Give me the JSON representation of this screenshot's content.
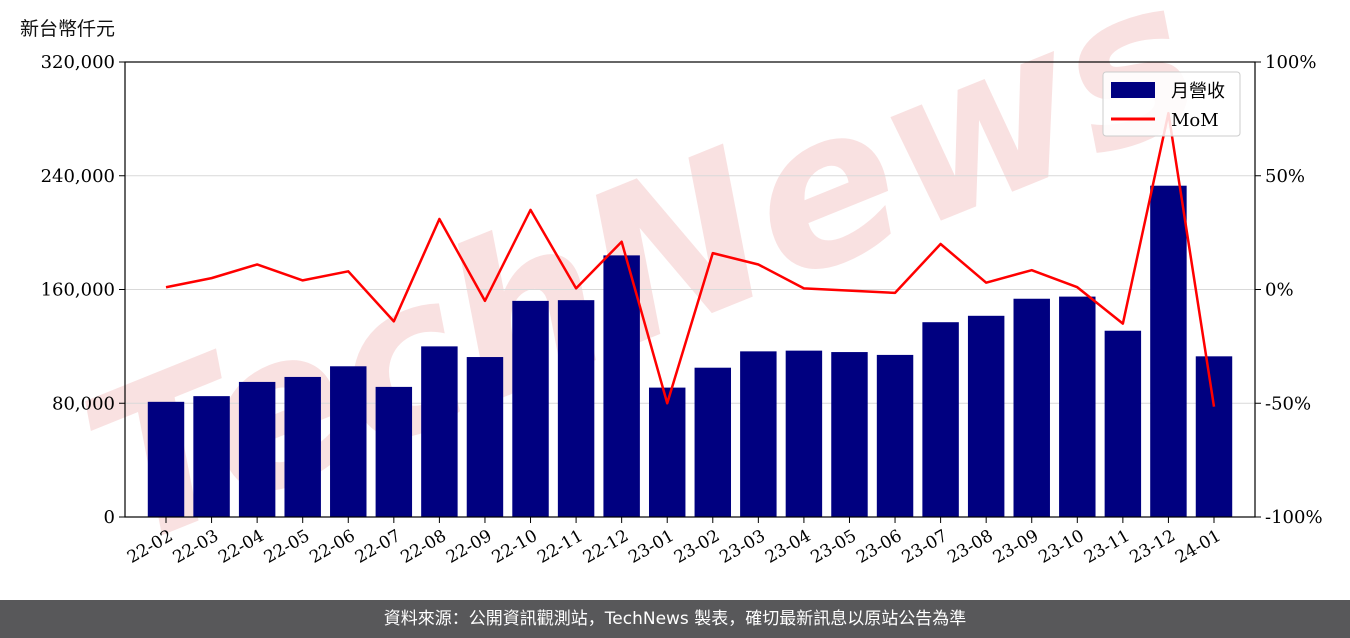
{
  "unit_label": "新台幣仟元",
  "watermark": "TechNews",
  "footer": "資料來源：公開資訊觀測站，TechNews 製表，確切最新訊息以原站公告為準",
  "colors": {
    "bar": "#000080",
    "line": "#ff0000",
    "grid": "#d9d9d9",
    "watermark": "#f4c9c9"
  },
  "chart_data": {
    "type": "bar",
    "title": "",
    "ylabel": "新台幣仟元",
    "categories": [
      "22-02",
      "22-03",
      "22-04",
      "22-05",
      "22-06",
      "22-07",
      "22-08",
      "22-09",
      "22-10",
      "22-11",
      "22-12",
      "23-01",
      "23-02",
      "23-03",
      "23-04",
      "23-05",
      "23-06",
      "23-07",
      "23-08",
      "23-09",
      "23-10",
      "23-11",
      "23-12",
      "24-01"
    ],
    "series": [
      {
        "name": "月營收",
        "type": "bar",
        "axis": "left",
        "values": [
          81000,
          85000,
          95000,
          98500,
          106000,
          91500,
          120000,
          112500,
          152000,
          152500,
          184000,
          91000,
          105000,
          116500,
          117000,
          116000,
          114000,
          137000,
          141500,
          153500,
          155000,
          131000,
          233000,
          113000
        ]
      },
      {
        "name": "MoM",
        "type": "line",
        "axis": "right",
        "values": [
          1,
          5,
          11,
          4,
          8,
          -14,
          31,
          -5,
          35,
          0.5,
          21,
          -50,
          16,
          11,
          0.5,
          -0.5,
          -1.5,
          20,
          3,
          8.5,
          1,
          -15,
          77.5,
          -51.5
        ]
      }
    ],
    "ylim": [
      0,
      320000
    ],
    "yticks": [
      0,
      80000,
      160000,
      240000,
      320000
    ],
    "ytick_labels": [
      "0",
      "80,000",
      "160,000",
      "240,000",
      "320,000"
    ],
    "y2lim": [
      -100,
      100
    ],
    "y2ticks": [
      -100,
      -50,
      0,
      50,
      100
    ],
    "y2tick_labels": [
      "-100%",
      "-50%",
      "0%",
      "50%",
      "100%"
    ],
    "grid": true,
    "legend_position": "top-right"
  }
}
